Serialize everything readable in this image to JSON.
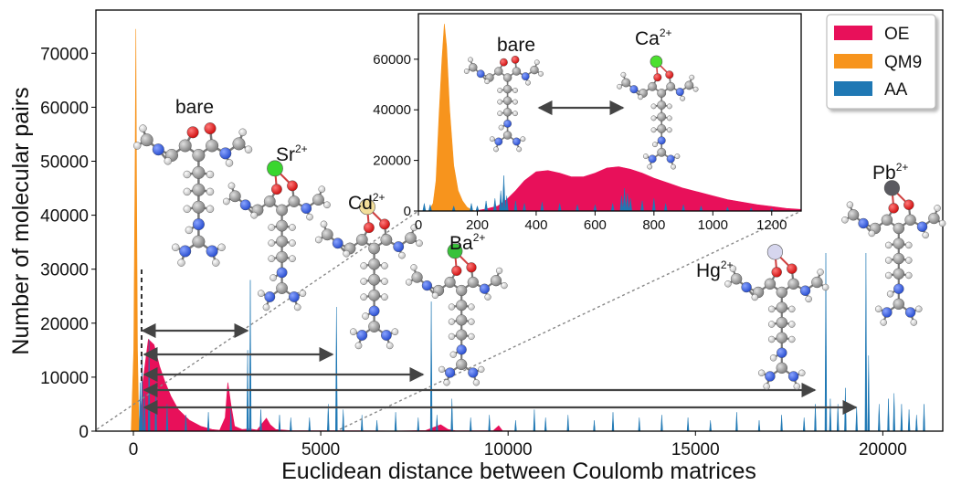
{
  "chart_data": [
    {
      "type": "area",
      "xlabel": "Euclidean distance between Coulomb matrices",
      "ylabel": "Number of molecular pairs",
      "xlim": [
        -1000,
        21600
      ],
      "ylim": [
        0,
        78000
      ],
      "xticks": [
        0,
        5000,
        10000,
        15000,
        20000
      ],
      "yticks": [
        0,
        10000,
        20000,
        30000,
        40000,
        50000,
        60000,
        70000
      ],
      "grid": false,
      "legend_position": "top-right",
      "legend": [
        "OE",
        "QM9",
        "AA"
      ],
      "series": [
        {
          "name": "OE",
          "color": "#E8105A",
          "points": [
            [
              150,
              0
            ],
            [
              250,
              9000
            ],
            [
              400,
              17000
            ],
            [
              550,
              16000
            ],
            [
              700,
              12000
            ],
            [
              850,
              9000
            ],
            [
              1000,
              6500
            ],
            [
              1200,
              4000
            ],
            [
              1500,
              2000
            ],
            [
              1800,
              900
            ],
            [
              2100,
              300
            ],
            [
              2300,
              150
            ],
            [
              2450,
              2500
            ],
            [
              2520,
              9000
            ],
            [
              2600,
              5000
            ],
            [
              2700,
              900
            ],
            [
              2900,
              300
            ],
            [
              3100,
              400
            ],
            [
              3300,
              200
            ],
            [
              3450,
              1500
            ],
            [
              3550,
              2400
            ],
            [
              3650,
              1200
            ],
            [
              3800,
              300
            ],
            [
              4200,
              100
            ],
            [
              5000,
              80
            ],
            [
              6000,
              60
            ],
            [
              7000,
              40
            ],
            [
              7800,
              120
            ],
            [
              8200,
              1200
            ],
            [
              8400,
              300
            ],
            [
              8600,
              60
            ],
            [
              9600,
              60
            ],
            [
              9750,
              1000
            ],
            [
              9850,
              80
            ],
            [
              10500,
              0
            ]
          ]
        },
        {
          "name": "QM9",
          "color": "#F7941D",
          "points": [
            [
              -60,
              0
            ],
            [
              10,
              15000
            ],
            [
              45,
              50000
            ],
            [
              65,
              74500
            ],
            [
              85,
              45000
            ],
            [
              110,
              15000
            ],
            [
              140,
              3000
            ],
            [
              170,
              0
            ]
          ]
        },
        {
          "name": "AA",
          "color": "#1F78B4",
          "spikes": [
            [
              180,
              9000
            ],
            [
              230,
              14000
            ],
            [
              300,
              7000
            ],
            [
              420,
              17000
            ],
            [
              600,
              9000
            ],
            [
              900,
              5000
            ],
            [
              1400,
              3000
            ],
            [
              2000,
              3500
            ],
            [
              2600,
              4000
            ],
            [
              3050,
              15000
            ],
            [
              3120,
              28000
            ],
            [
              3400,
              4000
            ],
            [
              3900,
              3000
            ],
            [
              4200,
              2500
            ],
            [
              4700,
              2500
            ],
            [
              5200,
              5000
            ],
            [
              5420,
              23000
            ],
            [
              5600,
              4000
            ],
            [
              6100,
              3000
            ],
            [
              6500,
              2000
            ],
            [
              7000,
              3500
            ],
            [
              7600,
              2500
            ],
            [
              7950,
              24000
            ],
            [
              8100,
              3000
            ],
            [
              8500,
              6000
            ],
            [
              9000,
              2500
            ],
            [
              9500,
              3000
            ],
            [
              10200,
              2000
            ],
            [
              10700,
              4000
            ],
            [
              11000,
              2500
            ],
            [
              11600,
              3000
            ],
            [
              12300,
              2000
            ],
            [
              12800,
              3500
            ],
            [
              13500,
              2500
            ],
            [
              14100,
              3000
            ],
            [
              14800,
              2500
            ],
            [
              15400,
              2000
            ],
            [
              16100,
              3500
            ],
            [
              16700,
              2000
            ],
            [
              17300,
              3000
            ],
            [
              17900,
              2500
            ],
            [
              18200,
              5000
            ],
            [
              18480,
              33000
            ],
            [
              18600,
              6000
            ],
            [
              18800,
              5000
            ],
            [
              19000,
              8000
            ],
            [
              19300,
              4500
            ],
            [
              19550,
              33000
            ],
            [
              19620,
              14000
            ],
            [
              19900,
              5000
            ],
            [
              20150,
              6000
            ],
            [
              20300,
              7000
            ],
            [
              20500,
              5000
            ],
            [
              20700,
              4000
            ],
            [
              20900,
              3000
            ],
            [
              21100,
              5000
            ]
          ]
        }
      ]
    },
    {
      "type": "area",
      "xlim": [
        0,
        1300
      ],
      "ylim": [
        0,
        78000
      ],
      "xticks": [
        0,
        200,
        400,
        600,
        800,
        1000,
        1200
      ],
      "yticks": [
        0,
        20000,
        40000,
        60000
      ],
      "series": [
        {
          "name": "OE",
          "color": "#E8105A",
          "points": [
            [
              190,
              0
            ],
            [
              230,
              800
            ],
            [
              270,
              2000
            ],
            [
              300,
              4500
            ],
            [
              330,
              8000
            ],
            [
              360,
              12000
            ],
            [
              400,
              15500
            ],
            [
              440,
              16000
            ],
            [
              480,
              15000
            ],
            [
              520,
              13500
            ],
            [
              560,
              13500
            ],
            [
              600,
              15000
            ],
            [
              640,
              17000
            ],
            [
              680,
              17500
            ],
            [
              720,
              16500
            ],
            [
              760,
              15000
            ],
            [
              800,
              13000
            ],
            [
              850,
              11000
            ],
            [
              900,
              9000
            ],
            [
              950,
              7500
            ],
            [
              1000,
              6000
            ],
            [
              1050,
              4500
            ],
            [
              1100,
              3500
            ],
            [
              1150,
              2500
            ],
            [
              1200,
              1800
            ],
            [
              1250,
              1000
            ],
            [
              1300,
              600
            ]
          ]
        },
        {
          "name": "QM9",
          "color": "#F7941D",
          "points": [
            [
              35,
              0
            ],
            [
              50,
              3000
            ],
            [
              60,
              12000
            ],
            [
              70,
              38000
            ],
            [
              80,
              60000
            ],
            [
              88,
              74000
            ],
            [
              96,
              65000
            ],
            [
              106,
              40000
            ],
            [
              120,
              18000
            ],
            [
              135,
              8000
            ],
            [
              150,
              4000
            ],
            [
              165,
              1500
            ],
            [
              180,
              400
            ],
            [
              195,
              0
            ]
          ]
        },
        {
          "name": "AA",
          "color": "#1F78B4",
          "spikes": [
            [
              20,
              3000
            ],
            [
              40,
              2500
            ],
            [
              120,
              2000
            ],
            [
              180,
              3000
            ],
            [
              200,
              2000
            ],
            [
              230,
              4000
            ],
            [
              260,
              5000
            ],
            [
              280,
              8000
            ],
            [
              290,
              14000
            ],
            [
              300,
              6000
            ],
            [
              330,
              4000
            ],
            [
              360,
              3000
            ],
            [
              420,
              3500
            ],
            [
              480,
              3000
            ],
            [
              540,
              2500
            ],
            [
              600,
              2500
            ],
            [
              660,
              3000
            ],
            [
              690,
              6000
            ],
            [
              700,
              9000
            ],
            [
              710,
              7000
            ],
            [
              720,
              5000
            ],
            [
              760,
              4000
            ],
            [
              800,
              5000
            ],
            [
              840,
              3000
            ],
            [
              900,
              2500
            ],
            [
              960,
              2000
            ],
            [
              1050,
              1500
            ],
            [
              1130,
              1200
            ],
            [
              1200,
              1000
            ]
          ]
        }
      ]
    }
  ],
  "molecules": {
    "labels": [
      {
        "id": "bare",
        "text": "bare"
      },
      {
        "id": "sr",
        "text": "Sr",
        "sup": "2+"
      },
      {
        "id": "cd",
        "text": "Cd",
        "sup": "2+"
      },
      {
        "id": "ba",
        "text": "Ba",
        "sup": "2+"
      },
      {
        "id": "hg",
        "text": "Hg",
        "sup": "2+"
      },
      {
        "id": "pb",
        "text": "Pb",
        "sup": "2+"
      },
      {
        "id": "inset-bare",
        "text": "bare"
      },
      {
        "id": "inset-ca",
        "text": "Ca",
        "sup": "2+"
      }
    ],
    "ion_colors": {
      "sr": "#39D62E",
      "cd": "#F3DE9A",
      "ba": "#39C23A",
      "hg": "#D6D6EE",
      "pb": "#5A5A60",
      "ca": "#4CE02E"
    }
  }
}
